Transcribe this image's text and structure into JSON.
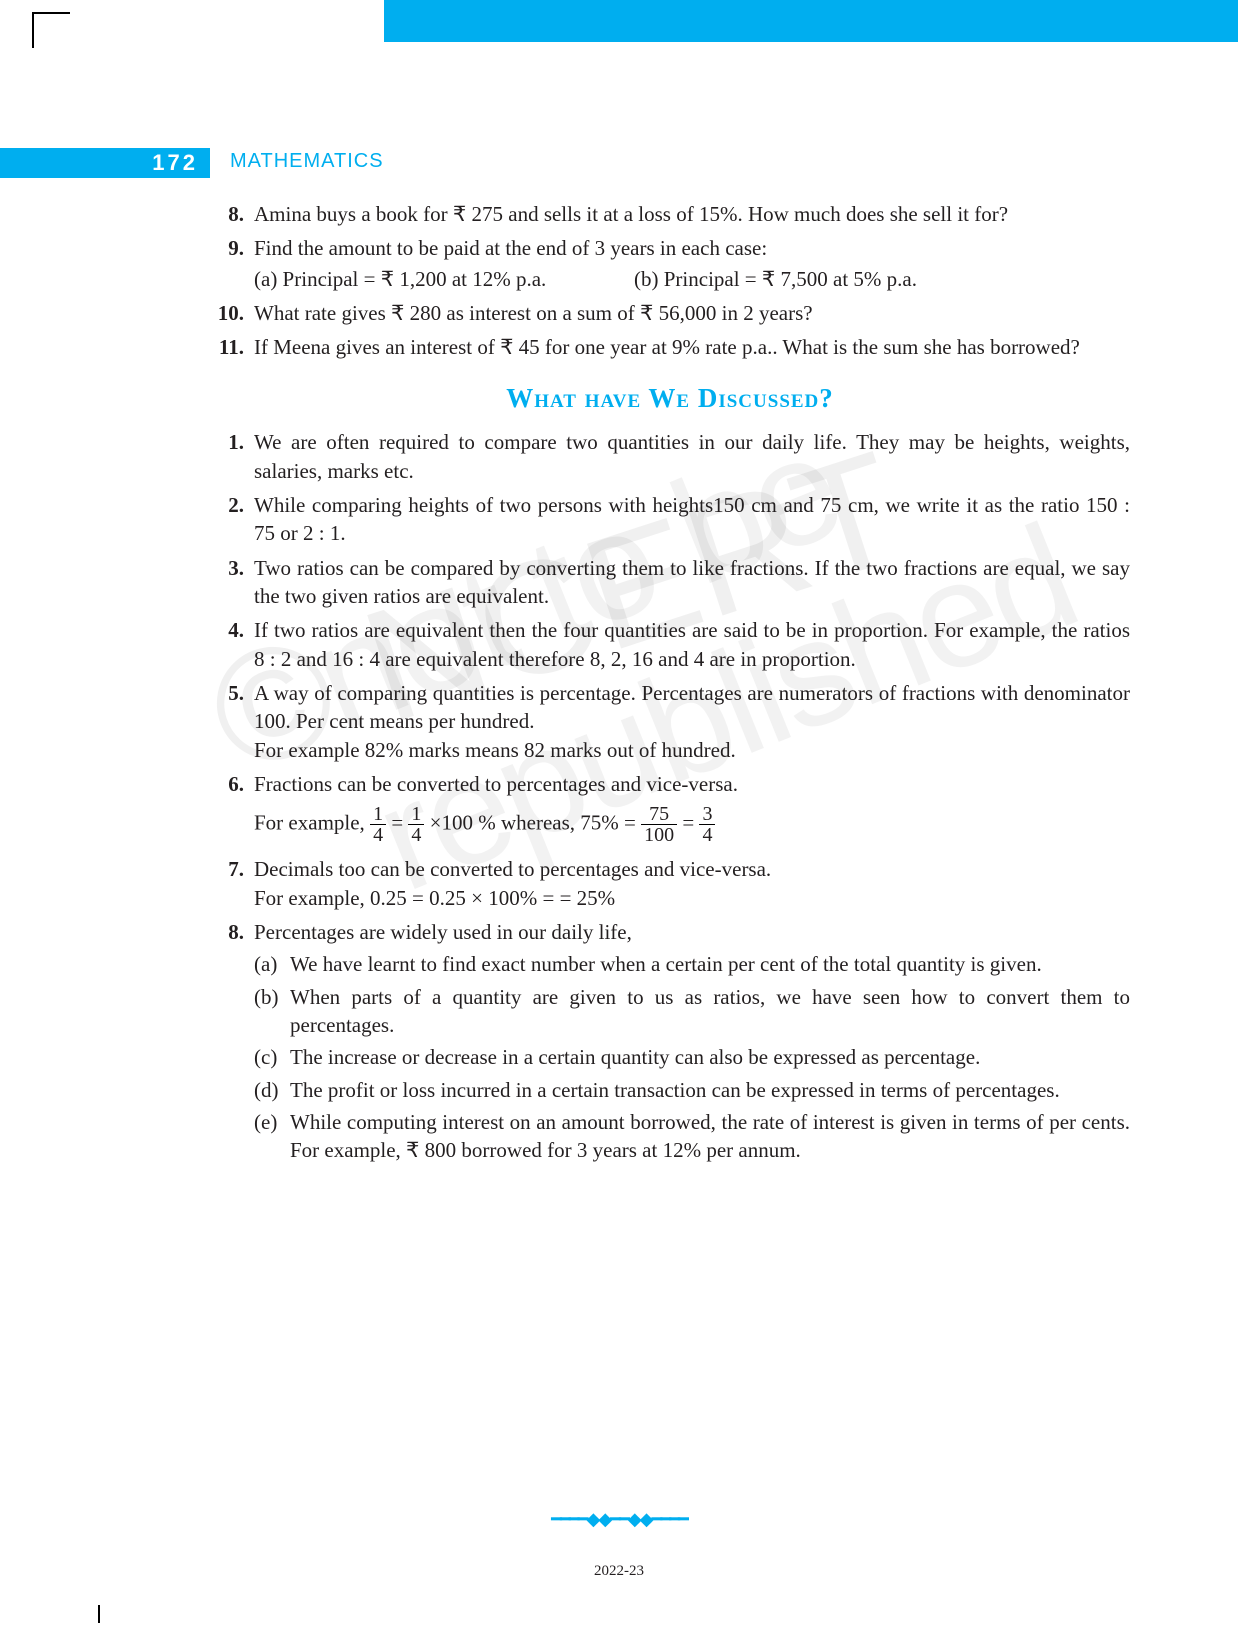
{
  "page_number": "172",
  "subject": "MATHEMATICS",
  "exercises": [
    {
      "n": "8.",
      "text": "Amina buys a book for ₹ 275 and sells it at a loss of 15%. How much does she sell it for?"
    },
    {
      "n": "9.",
      "text": "Find the amount to be paid at the end of 3 years in each case:",
      "sub_a": "(a)  Principal = ₹ 1,200 at 12% p.a.",
      "sub_b": "(b)  Principal = ₹ 7,500 at 5% p.a."
    },
    {
      "n": "10.",
      "text": "What rate gives ₹ 280 as interest on a sum of ₹ 56,000 in 2 years?"
    },
    {
      "n": "11.",
      "text": "If Meena gives an interest of ₹ 45 for one year at 9% rate p.a.. What is the sum she has borrowed?"
    }
  ],
  "heading": "What have We Discussed?",
  "discussed": [
    {
      "n": "1.",
      "text": "We are often required to compare two quantities in our daily life. They may be heights, weights, salaries, marks etc."
    },
    {
      "n": "2.",
      "text": "While comparing heights of two persons with heights150 cm and 75 cm, we write it as the ratio 150 : 75  or 2 : 1."
    },
    {
      "n": "3.",
      "text": "Two ratios can be compared by converting them to like fractions. If the two fractions are equal, we say the two given ratios are equivalent."
    },
    {
      "n": "4.",
      "text": "If two ratios are equivalent then the four quantities are said to be in proportion. For example, the ratios 8 : 2 and 16 : 4 are equivalent therefore 8, 2, 16 and 4 are in proportion."
    },
    {
      "n": "5.",
      "text": "A way of comparing quantities is percentage. Percentages are numerators of fractions with denominator 100. Per cent means per hundred.",
      "extra": "For example 82% marks means 82 marks out of hundred."
    },
    {
      "n": "6.",
      "text": "Fractions can be converted to percentages and vice-versa.",
      "math_prefix": "For example,  ",
      "math_mid": " whereas, 75% = ",
      "f1n": "1",
      "f1d": "4",
      "f2n": "1",
      "f2d": "4",
      "times100": "×100 %",
      "f3n": "75",
      "f3d": "100",
      "f4n": "3",
      "f4d": "4"
    },
    {
      "n": "7.",
      "text": "Decimals too can be converted to percentages and vice-versa.",
      "extra": "For example, 0.25 = 0.25 × 100% =  = 25%"
    },
    {
      "n": "8.",
      "text": "Percentages are widely used in our daily life,",
      "subs": [
        {
          "l": "(a)",
          "t": "We have learnt to find exact number when a certain per cent of the total quantity is given."
        },
        {
          "l": "(b)",
          "t": "When parts of a quantity are given to us as ratios, we have seen how to convert them to percentages."
        },
        {
          "l": "(c)",
          "t": "The increase or decrease in a certain quantity can also be expressed as percentage."
        },
        {
          "l": "(d)",
          "t": "The profit or loss incurred in a certain transaction can be expressed in terms of percentages."
        },
        {
          "l": "(e)",
          "t": "While computing interest on an amount borrowed, the rate of interest is given in terms of per cents. For example, ₹ 800 borrowed for 3 years at 12% per annum."
        }
      ]
    }
  ],
  "footer_year": "2022-23",
  "watermark1": "© NCERT",
  "watermark2": "not to be republished",
  "colors": {
    "cyan": "#00aeef",
    "text": "#231f20"
  }
}
